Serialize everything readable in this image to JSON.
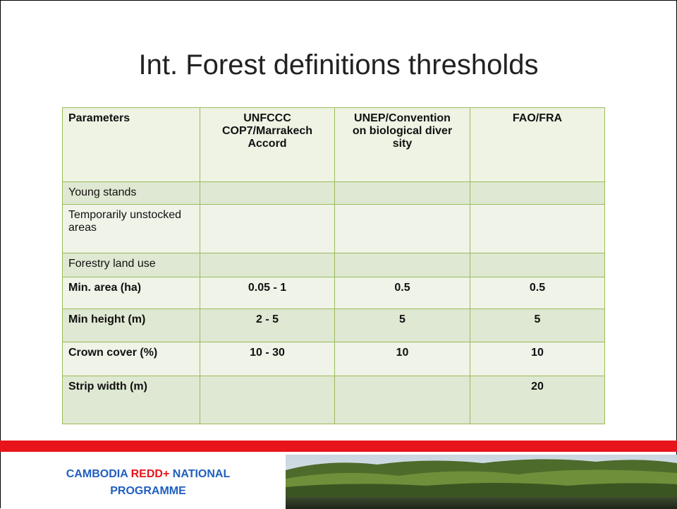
{
  "title": "Int. Forest definitions thresholds",
  "table": {
    "header": [
      "Parameters",
      "UNFCCC COP7/Marrakech Accord",
      "UNEP/Convention on biological diversity",
      "FAO/FRA"
    ],
    "rows": [
      [
        "Young stands",
        null,
        null,
        null
      ],
      [
        "Temporarily unstocked areas",
        null,
        null,
        null
      ],
      [
        "Forestry land use",
        null,
        null,
        null
      ],
      [
        "Min. area (ha)",
        "0.05 - 1",
        "0.5",
        "0.5"
      ],
      [
        "Min height (m)",
        "2 - 5",
        "5",
        "5"
      ],
      [
        "Crown cover (%)",
        "10 - 30",
        "10",
        "10"
      ],
      [
        "Strip width (m)",
        null,
        null,
        "20"
      ]
    ]
  },
  "footer": {
    "line1": [
      "CAMBODIA",
      "REDD+",
      "NATIONAL"
    ],
    "line2": "PROGRAMME"
  }
}
